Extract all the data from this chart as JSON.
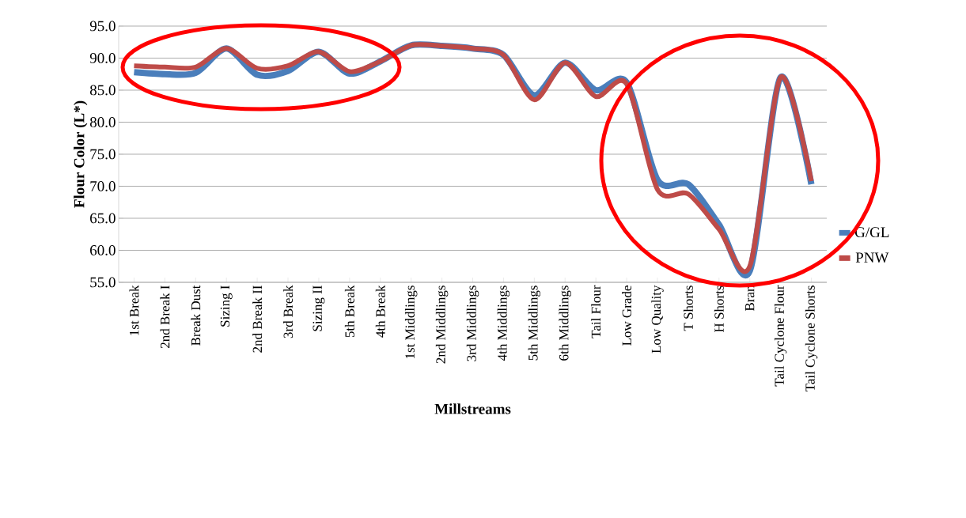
{
  "chart_data": {
    "type": "line",
    "xlabel": "Millstreams",
    "ylabel": "Flour Color (L*)",
    "categories": [
      "1st Break",
      "2nd Break I",
      "Break Dust",
      "Sizing I",
      "2nd Break II",
      "3rd Break",
      "Sizing II",
      "5th Break",
      "4th Break",
      "1st Middlings",
      "2nd Middlings",
      "3rd Middlings",
      "4th Middlings",
      "5th Middlings",
      "6th Middlings",
      "Tail Flour",
      "Low Grade",
      "Low Quality",
      "T Shorts",
      "H Shorts",
      "Bran",
      "Tail Cyclone Flour",
      "Tail Cyclone Shorts"
    ],
    "series": [
      {
        "name": "G/GL",
        "color": "#4a7ebb",
        "values": [
          87.8,
          87.5,
          87.7,
          91.5,
          87.4,
          88.0,
          91.0,
          87.6,
          89.5,
          92.0,
          91.9,
          91.5,
          90.5,
          84.2,
          89.3,
          85.0,
          86.2,
          71.0,
          70.3,
          64.0,
          56.8,
          87.0,
          70.3
        ]
      },
      {
        "name": "PNW",
        "color": "#be4b48",
        "values": [
          88.8,
          88.6,
          88.6,
          91.5,
          88.4,
          88.8,
          91.0,
          87.9,
          89.5,
          92.0,
          91.9,
          91.5,
          90.5,
          83.5,
          89.3,
          84.0,
          86.0,
          69.5,
          68.8,
          63.3,
          57.5,
          87.0,
          70.8
        ]
      }
    ],
    "ylim": [
      55,
      95
    ],
    "yticks": [
      {
        "value": 55,
        "label": "55.0"
      },
      {
        "value": 60,
        "label": "60.0"
      },
      {
        "value": 65,
        "label": "65.0"
      },
      {
        "value": 70,
        "label": "70.0"
      },
      {
        "value": 75,
        "label": "75.0"
      },
      {
        "value": 80,
        "label": "80.0"
      },
      {
        "value": 85,
        "label": "85.0"
      },
      {
        "value": 90,
        "label": "90.0"
      },
      {
        "value": 95,
        "label": "95.0"
      }
    ],
    "grid": "y",
    "legend": "right",
    "marker": "none",
    "line_style": "solid"
  }
}
